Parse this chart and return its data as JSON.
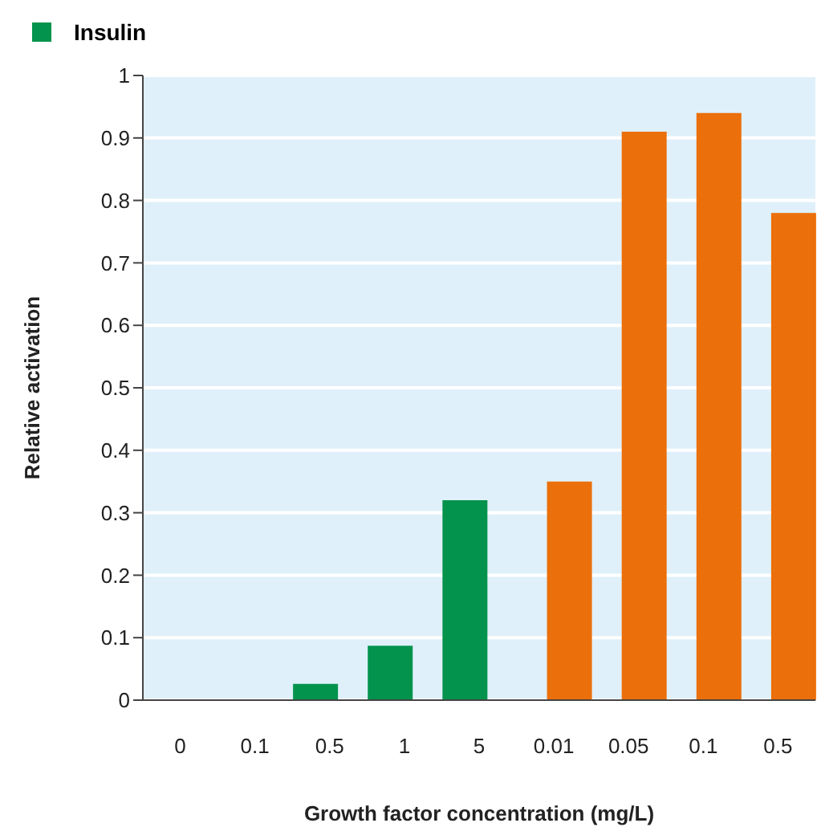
{
  "chart_data": {
    "type": "bar",
    "xlabel": "Growth factor concentration (mg/L)",
    "ylabel": "Relative activation",
    "categories": [
      "0",
      "0.1",
      "0.5",
      "1",
      "5",
      "0.01",
      "0.05",
      "0.1",
      "0.5"
    ],
    "series": [
      {
        "color": "#eb6f0a",
        "values": [
          null,
          null,
          null,
          null,
          null,
          0.35,
          0.91,
          0.94,
          0.78
        ]
      },
      {
        "name": "Insulin",
        "color": "#03934d",
        "values": [
          0,
          0,
          0.026,
          0.087,
          0.32,
          null,
          null,
          null,
          null
        ]
      }
    ],
    "ylim": [
      0,
      1
    ],
    "yticks": [
      0,
      0.1,
      0.2,
      0.3,
      0.4,
      0.5,
      0.6,
      0.7,
      0.8,
      0.9,
      1
    ],
    "grid": "y",
    "legend": "top left"
  }
}
